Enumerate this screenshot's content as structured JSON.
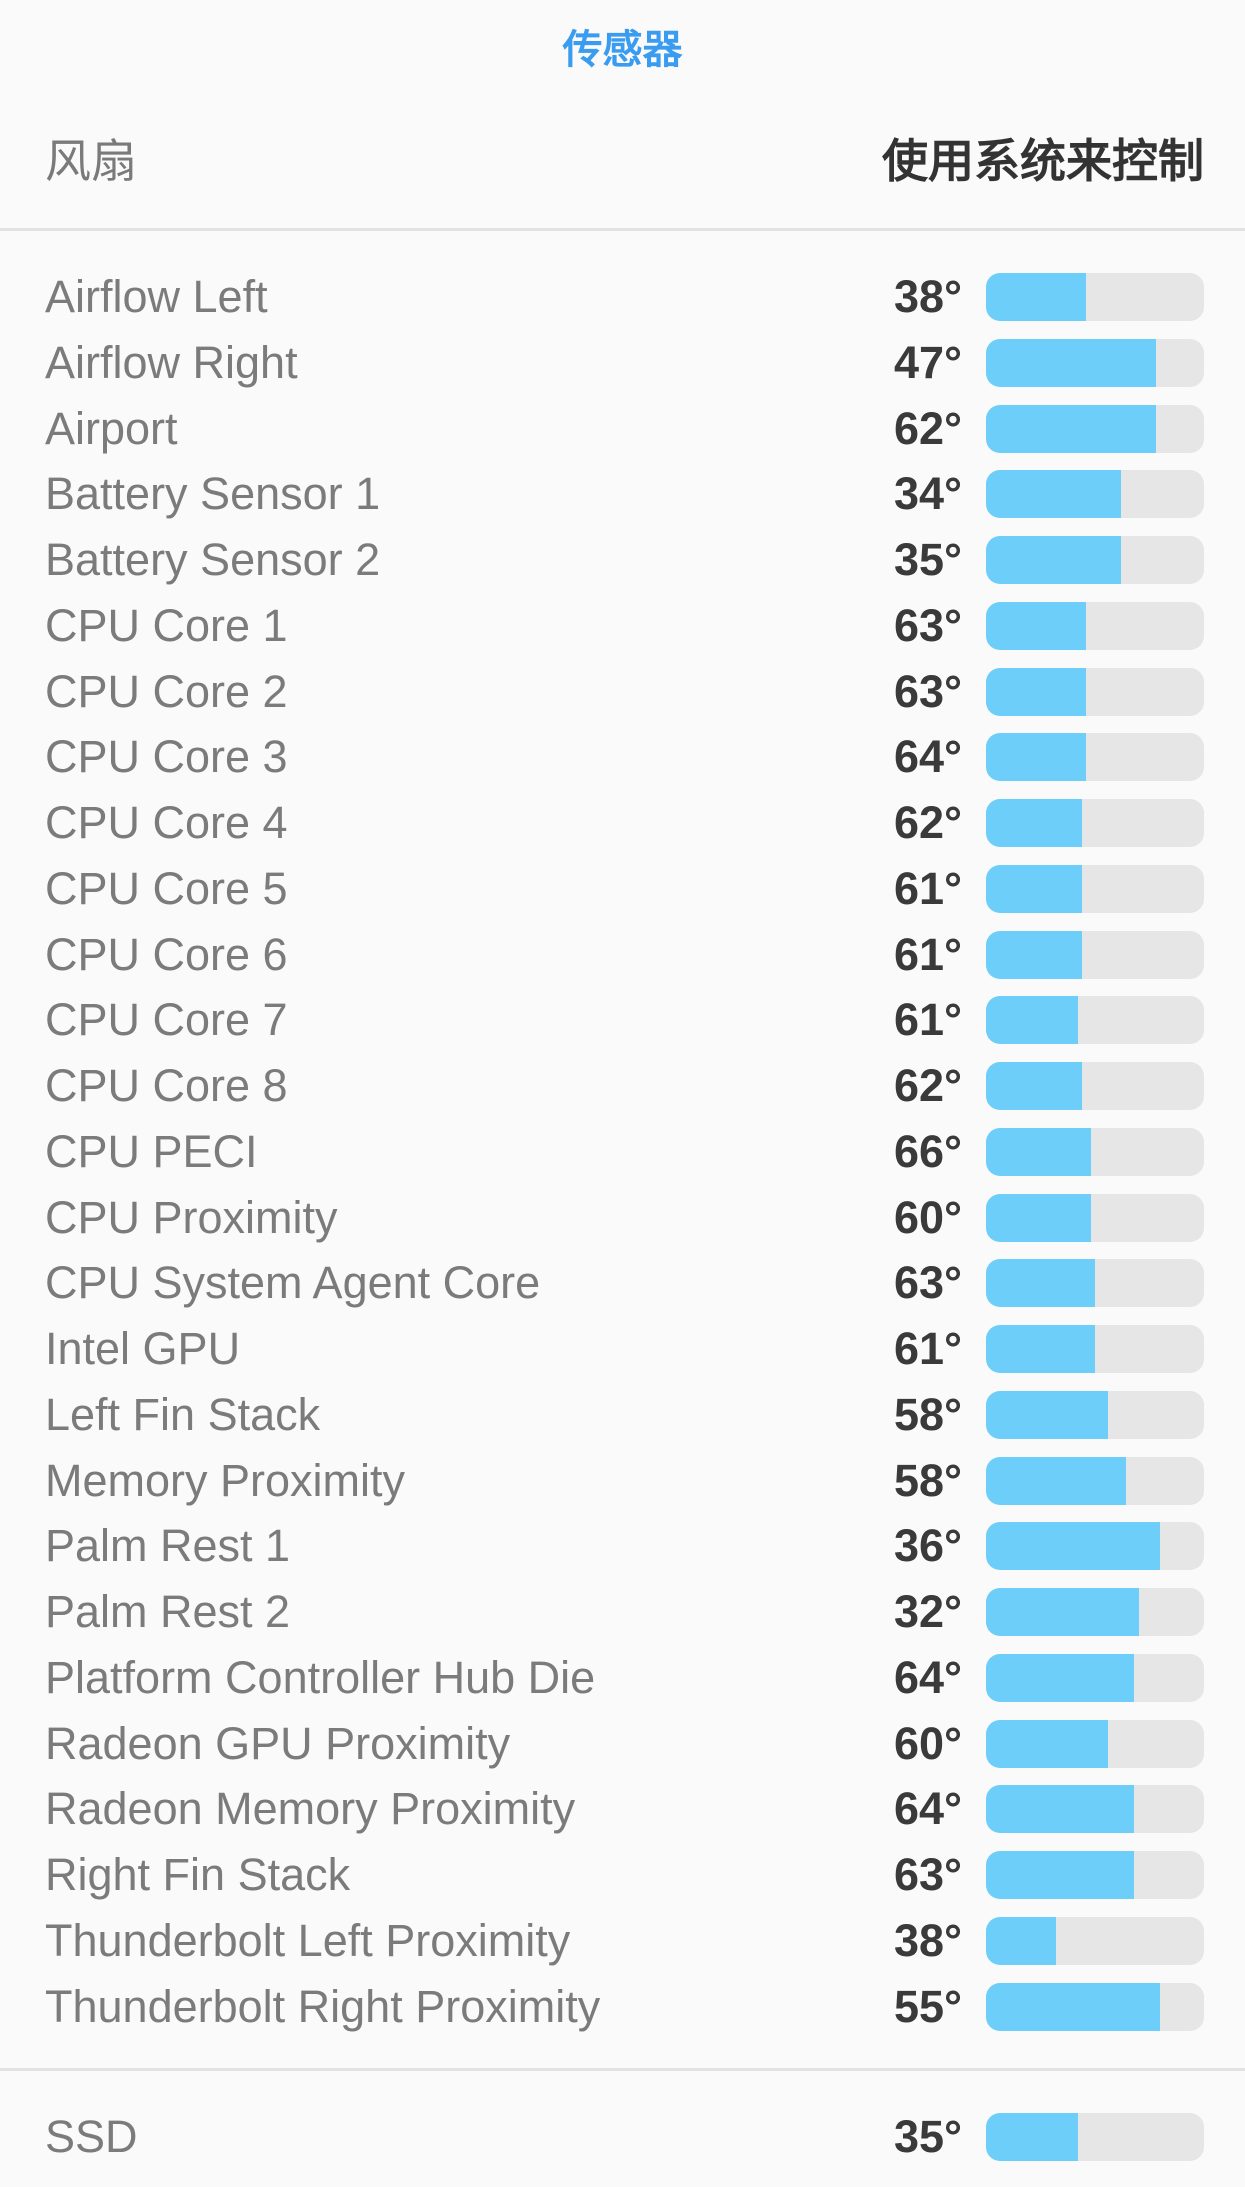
{
  "title": "传感器",
  "fan": {
    "label": "风扇",
    "value": "使用系统来控制"
  },
  "colors": {
    "accent": "#3a9cf0",
    "bar_fill": "#6dcff9",
    "bar_track": "#e6e6e6"
  },
  "sensors": [
    {
      "name": "Airflow Left",
      "value": "38°",
      "level": 0.46
    },
    {
      "name": "Airflow Right",
      "value": "47°",
      "level": 0.78
    },
    {
      "name": "Airport",
      "value": "62°",
      "level": 0.78
    },
    {
      "name": "Battery Sensor 1",
      "value": "34°",
      "level": 0.62
    },
    {
      "name": "Battery Sensor 2",
      "value": "35°",
      "level": 0.62
    },
    {
      "name": "CPU Core 1",
      "value": "63°",
      "level": 0.46
    },
    {
      "name": "CPU Core 2",
      "value": "63°",
      "level": 0.46
    },
    {
      "name": "CPU Core 3",
      "value": "64°",
      "level": 0.46
    },
    {
      "name": "CPU Core 4",
      "value": "62°",
      "level": 0.44
    },
    {
      "name": "CPU Core 5",
      "value": "61°",
      "level": 0.44
    },
    {
      "name": "CPU Core 6",
      "value": "61°",
      "level": 0.44
    },
    {
      "name": "CPU Core 7",
      "value": "61°",
      "level": 0.42
    },
    {
      "name": "CPU Core 8",
      "value": "62°",
      "level": 0.44
    },
    {
      "name": "CPU PECI",
      "value": "66°",
      "level": 0.48
    },
    {
      "name": "CPU Proximity",
      "value": "60°",
      "level": 0.48
    },
    {
      "name": "CPU System Agent Core",
      "value": "63°",
      "level": 0.5
    },
    {
      "name": "Intel GPU",
      "value": "61°",
      "level": 0.5
    },
    {
      "name": "Left Fin Stack",
      "value": "58°",
      "level": 0.56
    },
    {
      "name": "Memory Proximity",
      "value": "58°",
      "level": 0.64
    },
    {
      "name": "Palm Rest 1",
      "value": "36°",
      "level": 0.8
    },
    {
      "name": "Palm Rest 2",
      "value": "32°",
      "level": 0.7
    },
    {
      "name": "Platform Controller Hub Die",
      "value": "64°",
      "level": 0.68
    },
    {
      "name": "Radeon GPU Proximity",
      "value": "60°",
      "level": 0.56
    },
    {
      "name": "Radeon Memory Proximity",
      "value": "64°",
      "level": 0.68
    },
    {
      "name": "Right Fin Stack",
      "value": "63°",
      "level": 0.68
    },
    {
      "name": "Thunderbolt Left Proximity",
      "value": "38°",
      "level": 0.32
    },
    {
      "name": "Thunderbolt Right Proximity",
      "value": "55°",
      "level": 0.8
    }
  ],
  "drives": [
    {
      "name": "SSD",
      "value": "35°",
      "level": 0.42
    }
  ]
}
